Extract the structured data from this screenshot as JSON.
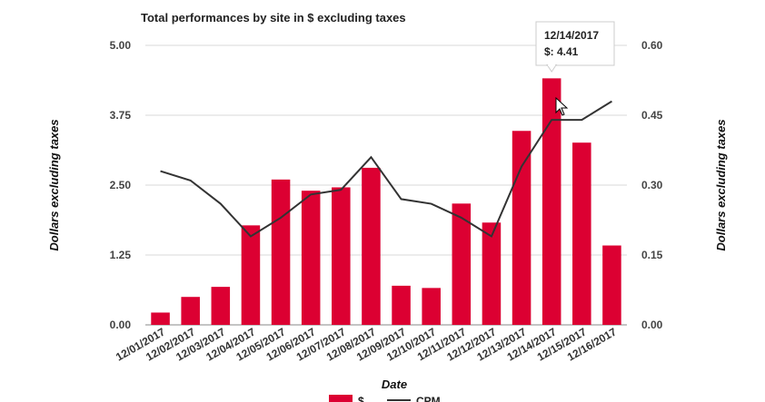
{
  "chart_data": {
    "type": "bar",
    "title": "Total performances by site in $ excluding taxes",
    "xlabel": "Date",
    "ylabel_left": "Dollars excluding taxes",
    "ylabel_right": "Dollars excluding taxes",
    "categories": [
      "12/01/2017",
      "12/02/2017",
      "12/03/2017",
      "12/04/2017",
      "12/05/2017",
      "12/06/2017",
      "12/07/2017",
      "12/08/2017",
      "12/09/2017",
      "12/10/2017",
      "12/11/2017",
      "12/12/2017",
      "12/13/2017",
      "12/14/2017",
      "12/15/2017",
      "12/16/2017"
    ],
    "y_left": {
      "min": 0,
      "max": 5,
      "ticks": [
        "0.00",
        "1.25",
        "2.50",
        "3.75",
        "5.00"
      ]
    },
    "y_right": {
      "min": 0,
      "max": 0.6,
      "ticks": [
        "0.00",
        "0.15",
        "0.30",
        "0.45",
        "0.60"
      ]
    },
    "grid": true,
    "legend_position": "bottom",
    "series": [
      {
        "name": "$",
        "type": "bar",
        "axis": "left",
        "color": "#dc0032",
        "values": [
          0.22,
          0.5,
          0.68,
          1.78,
          2.6,
          2.4,
          2.46,
          2.81,
          0.7,
          0.66,
          2.17,
          1.83,
          3.47,
          4.41,
          3.26,
          1.42
        ]
      },
      {
        "name": "CPM",
        "type": "line",
        "axis": "right",
        "color": "#333333",
        "values": [
          0.33,
          0.31,
          0.26,
          0.19,
          0.23,
          0.28,
          0.29,
          0.36,
          0.27,
          0.26,
          0.23,
          0.19,
          0.34,
          0.44,
          0.44,
          0.48
        ]
      }
    ],
    "tooltip": {
      "date": "12/14/2017",
      "text": "$: 4.41",
      "index": 13
    }
  }
}
